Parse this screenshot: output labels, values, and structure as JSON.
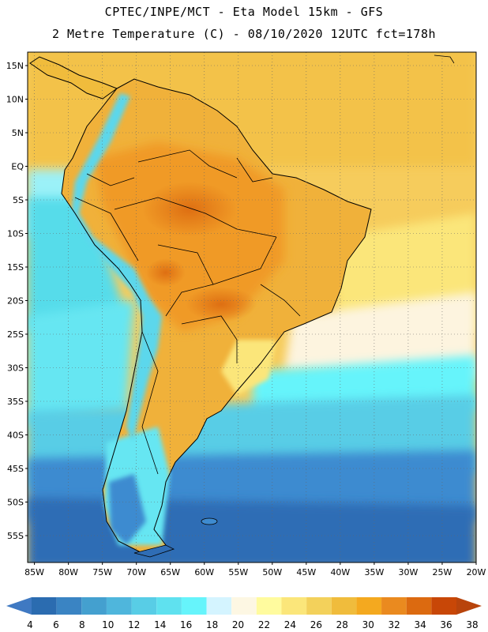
{
  "title_line1": "CPTEC/INPE/MCT -  Eta Model 15km - GFS",
  "title_line2": "2 Metre Temperature (C) - 08/10/2020 12UTC fct=178h",
  "map": {
    "lon_range": [
      -86,
      -20
    ],
    "lat_range": [
      -59,
      17
    ],
    "lat_ticks": [
      {
        "value": 15,
        "label": "15N"
      },
      {
        "value": 10,
        "label": "10N"
      },
      {
        "value": 5,
        "label": "5N"
      },
      {
        "value": 0,
        "label": "EQ"
      },
      {
        "value": -5,
        "label": "5S"
      },
      {
        "value": -10,
        "label": "10S"
      },
      {
        "value": -15,
        "label": "15S"
      },
      {
        "value": -20,
        "label": "20S"
      },
      {
        "value": -25,
        "label": "25S"
      },
      {
        "value": -30,
        "label": "30S"
      },
      {
        "value": -35,
        "label": "35S"
      },
      {
        "value": -40,
        "label": "40S"
      },
      {
        "value": -45,
        "label": "45S"
      },
      {
        "value": -50,
        "label": "50S"
      },
      {
        "value": -55,
        "label": "55S"
      }
    ],
    "lon_ticks": [
      {
        "value": -85,
        "label": "85W"
      },
      {
        "value": -80,
        "label": "80W"
      },
      {
        "value": -75,
        "label": "75W"
      },
      {
        "value": -70,
        "label": "70W"
      },
      {
        "value": -65,
        "label": "65W"
      },
      {
        "value": -60,
        "label": "60W"
      },
      {
        "value": -55,
        "label": "55W"
      },
      {
        "value": -50,
        "label": "50W"
      },
      {
        "value": -45,
        "label": "45W"
      },
      {
        "value": -40,
        "label": "40W"
      },
      {
        "value": -35,
        "label": "35W"
      },
      {
        "value": -30,
        "label": "30W"
      },
      {
        "value": -25,
        "label": "25W"
      },
      {
        "value": -20,
        "label": "20W"
      }
    ]
  },
  "colorbar": {
    "labels": [
      "4",
      "6",
      "8",
      "10",
      "12",
      "14",
      "16",
      "18",
      "20",
      "22",
      "24",
      "26",
      "28",
      "30",
      "32",
      "34",
      "36",
      "38"
    ],
    "colors": [
      "#2b6cb0",
      "#3a84c3",
      "#44a0cf",
      "#4fb6dc",
      "#58cde6",
      "#5fe1ef",
      "#66f4fb",
      "#d4f4ff",
      "#fdf7e3",
      "#fffb9e",
      "#fbe67a",
      "#f3d15b",
      "#f0bc3c",
      "#f4a91f",
      "#ea8a1f",
      "#dc6a10",
      "#c84707"
    ],
    "left_arrow_color": "#3f79c2",
    "right_arrow_color": "#b8440c"
  },
  "palette": {
    "ocean_deep": "#2f6db5",
    "ocean_mid": "#3e8bd0",
    "ocean_cyan": "#56dcea",
    "ocean_light": "#9bf1f8",
    "ocean_pale": "#fdf4df",
    "ocean_warm": "#f6cc5c",
    "land_hot": "#dc6a10",
    "land_warm": "#f09a25",
    "land_mid": "#f0b13a",
    "andes_cold": "#5bd7ec"
  }
}
